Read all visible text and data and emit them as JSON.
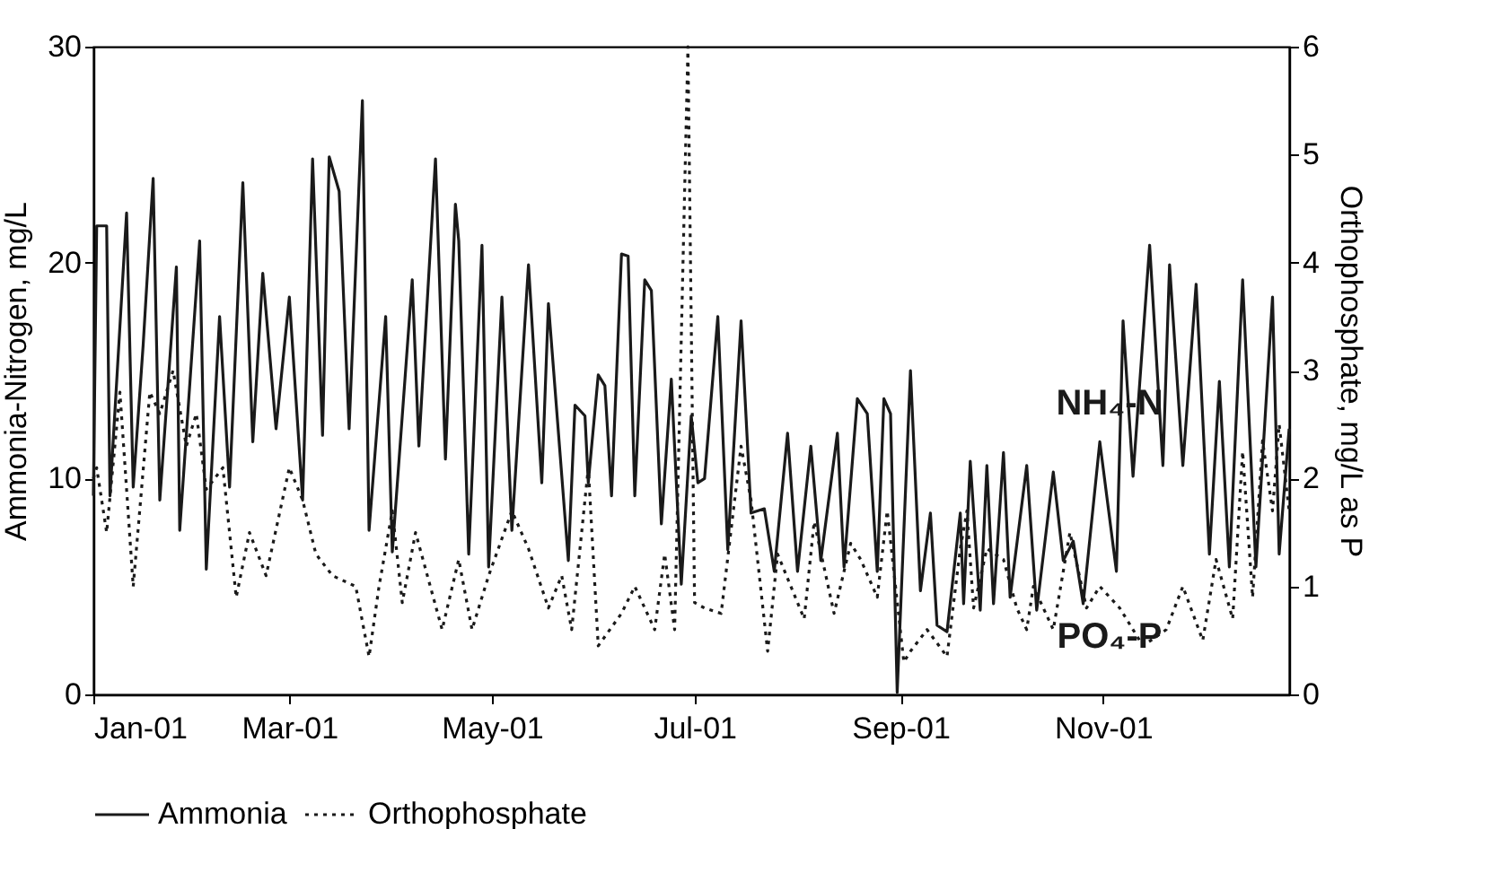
{
  "chart_data": {
    "type": "line",
    "ylabel": "Ammonia-Nitrogen, mg/L",
    "y2label": "Orthophosphate, mg/L as P",
    "xlim": [
      "--01-01",
      "--12-27"
    ],
    "xticks": [
      {
        "value": "--01-01",
        "label": "Jan-01"
      },
      {
        "value": "--03-01",
        "label": "Mar-01"
      },
      {
        "value": "--05-01",
        "label": "May-01"
      },
      {
        "value": "--07-01",
        "label": "Jul-01"
      },
      {
        "value": "--09-01",
        "label": "Sep-01"
      },
      {
        "value": "--11-01",
        "label": "Nov-01"
      }
    ],
    "ylim": [
      0,
      30
    ],
    "yticks": [
      0,
      10,
      20,
      30
    ],
    "y2lim": [
      0,
      6
    ],
    "y2ticks": [
      0,
      1,
      2,
      3,
      4,
      5,
      6
    ],
    "grid": false,
    "legend": "bottom",
    "marker": "none",
    "annotations": [
      "NH₄-N",
      "PO₄-P"
    ],
    "series": [
      {
        "name": "Ammonia",
        "color": "#1a1a1a",
        "line_style": "solid",
        "x": [
          "--01-01",
          "--01-02",
          "--01-05",
          "--01-06",
          "--01-11",
          "--01-13",
          "--01-16",
          "--01-19",
          "--01-21",
          "--01-26",
          "--01-27",
          "--02-02",
          "--02-04",
          "--02-08",
          "--02-11",
          "--02-15",
          "--02-18",
          "--02-21",
          "--02-25",
          "--03-01",
          "--03-05",
          "--03-08",
          "--03-11",
          "--03-13",
          "--03-16",
          "--03-19",
          "--03-23",
          "--03-25",
          "--03-30",
          "--04-01",
          "--04-07",
          "--04-09",
          "--04-14",
          "--04-17",
          "--04-20",
          "--04-21",
          "--04-24",
          "--04-28",
          "--04-30",
          "--05-04",
          "--05-07",
          "--05-12",
          "--05-16",
          "--05-18",
          "--05-24",
          "--05-26",
          "--05-29",
          "--05-30",
          "--06-02",
          "--06-04",
          "--06-06",
          "--06-09",
          "--06-11",
          "--06-13",
          "--06-16",
          "--06-18",
          "--06-21",
          "--06-24",
          "--06-27",
          "--06-30",
          "--07-02",
          "--07-04",
          "--07-08",
          "--07-11",
          "--07-15",
          "--07-18",
          "--07-22",
          "--07-25",
          "--07-29",
          "--08-01",
          "--08-05",
          "--08-08",
          "--08-13",
          "--08-15",
          "--08-19",
          "--08-22",
          "--08-25",
          "--08-27",
          "--08-29",
          "--08-31",
          "--09-04",
          "--09-07",
          "--09-10",
          "--09-12",
          "--09-15",
          "--09-19",
          "--09-20",
          "--09-22",
          "--09-25",
          "--09-27",
          "--09-29",
          "--10-02",
          "--10-04",
          "--10-09",
          "--10-12",
          "--10-17",
          "--10-20",
          "--10-23",
          "--10-26",
          "--10-31",
          "--11-05",
          "--11-07",
          "--11-10",
          "--11-15",
          "--11-19",
          "--11-21",
          "--11-25",
          "--11-29",
          "--12-03",
          "--12-06",
          "--12-09",
          "--12-13",
          "--12-17",
          "--12-22",
          "--12-24",
          "--12-27"
        ],
        "values": [
          9.2,
          21.7,
          21.7,
          9.2,
          22.3,
          9.6,
          16.2,
          23.9,
          9.0,
          19.8,
          7.6,
          21.0,
          5.8,
          17.5,
          9.6,
          23.7,
          11.7,
          19.5,
          12.3,
          18.4,
          9.0,
          24.8,
          12.0,
          24.9,
          23.3,
          12.3,
          27.5,
          7.6,
          17.5,
          6.6,
          19.2,
          11.5,
          24.8,
          10.9,
          22.7,
          21.0,
          6.5,
          20.8,
          5.9,
          18.4,
          7.6,
          19.9,
          9.8,
          18.1,
          6.2,
          13.4,
          12.9,
          9.8,
          14.8,
          14.3,
          9.2,
          20.4,
          20.3,
          9.2,
          19.2,
          18.7,
          7.9,
          14.6,
          5.1,
          12.9,
          9.8,
          10.0,
          17.5,
          6.7,
          17.3,
          8.4,
          8.6,
          5.7,
          12.1,
          5.7,
          11.5,
          6.2,
          12.1,
          5.9,
          13.7,
          13.0,
          5.7,
          13.7,
          13.0,
          0.1,
          15.0,
          4.8,
          8.4,
          3.2,
          2.9,
          8.4,
          4.2,
          10.8,
          3.9,
          10.6,
          4.2,
          11.2,
          4.5,
          10.6,
          3.9,
          10.3,
          6.2,
          7.1,
          4.2,
          11.7,
          5.7,
          17.3,
          10.1,
          20.8,
          10.6,
          19.9,
          10.6,
          19.0,
          6.5,
          14.5,
          5.9,
          19.2,
          5.9,
          18.4,
          6.5,
          12.3
        ]
      },
      {
        "name": "Orthophosphate",
        "color": "#1a1a1a",
        "line_style": "dotted",
        "axis": "y2",
        "x": [
          "--01-01",
          "--01-02",
          "--01-05",
          "--01-09",
          "--01-13",
          "--01-18",
          "--01-21",
          "--01-25",
          "--01-29",
          "--02-01",
          "--02-04",
          "--02-09",
          "--02-13",
          "--02-17",
          "--02-22",
          "--03-01",
          "--03-05",
          "--03-09",
          "--03-14",
          "--03-21",
          "--03-25",
          "--03-28",
          "--04-01",
          "--04-04",
          "--04-08",
          "--04-16",
          "--04-21",
          "--04-25",
          "--04-30",
          "--05-07",
          "--05-12",
          "--05-18",
          "--05-22",
          "--05-25",
          "--05-30",
          "--06-02",
          "--06-09",
          "--06-13",
          "--06-19",
          "--06-22",
          "--06-25",
          "--06-29",
          "--07-01",
          "--07-04",
          "--07-09",
          "--07-15",
          "--07-18",
          "--07-23",
          "--07-26",
          "--08-03",
          "--08-06",
          "--08-12",
          "--08-17",
          "--08-20",
          "--08-25",
          "--08-28",
          "--09-02",
          "--09-04",
          "--09-09",
          "--09-15",
          "--09-19",
          "--09-21",
          "--09-23",
          "--09-27",
          "--10-02",
          "--10-06",
          "--10-09",
          "--10-11",
          "--10-17",
          "--10-22",
          "--10-27",
          "--10-31",
          "--11-06",
          "--11-13",
          "--11-20",
          "--11-25",
          "--12-01",
          "--12-05",
          "--12-10",
          "--12-13",
          "--12-16",
          "--12-19",
          "--12-22",
          "--12-24",
          "--12-27"
        ],
        "values": [
          2.0,
          2.1,
          1.5,
          2.8,
          1.0,
          2.8,
          2.6,
          3.0,
          2.3,
          2.6,
          1.9,
          2.1,
          0.9,
          1.5,
          1.1,
          2.1,
          1.8,
          1.3,
          1.1,
          1.0,
          0.35,
          1.0,
          1.7,
          0.85,
          1.5,
          0.6,
          1.25,
          0.6,
          1.1,
          1.7,
          1.35,
          0.8,
          1.1,
          0.6,
          2.1,
          0.45,
          0.75,
          1.0,
          0.6,
          1.3,
          0.6,
          6.0,
          0.85,
          0.8,
          0.75,
          2.3,
          1.8,
          0.4,
          1.3,
          0.7,
          1.6,
          0.75,
          1.4,
          1.25,
          0.9,
          1.7,
          0.3,
          0.4,
          0.6,
          0.35,
          1.35,
          1.7,
          0.8,
          1.35,
          1.25,
          0.8,
          0.6,
          1.0,
          0.6,
          1.5,
          0.8,
          1.0,
          0.8,
          0.45,
          0.6,
          1.0,
          0.5,
          1.25,
          0.7,
          2.25,
          0.9,
          2.35,
          1.7,
          2.5,
          1.7
        ]
      }
    ]
  }
}
